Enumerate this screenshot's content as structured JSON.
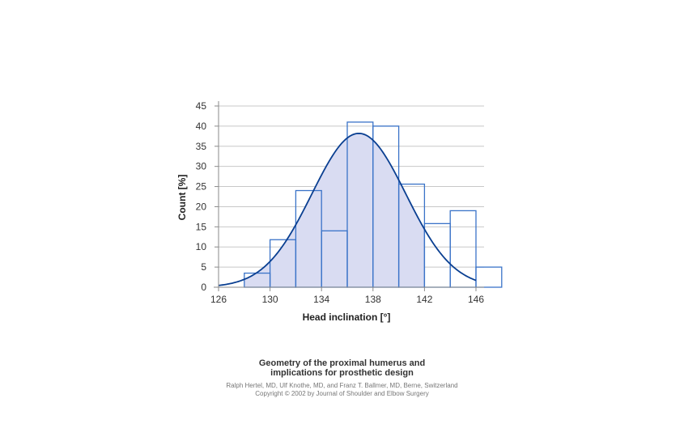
{
  "chart_data": {
    "type": "bar",
    "xlabel": "Head inclination [°]",
    "ylabel": "Count [%]",
    "xlim": [
      126,
      146
    ],
    "ylim": [
      0,
      45
    ],
    "xticks": [
      "126",
      "130",
      "134",
      "138",
      "142",
      "146"
    ],
    "yticks": [
      "0",
      "5",
      "10",
      "15",
      "20",
      "25",
      "30",
      "35",
      "40",
      "45"
    ],
    "grid": true,
    "bins": [
      {
        "start": 128,
        "end": 130,
        "value": 3.5
      },
      {
        "start": 130,
        "end": 132,
        "value": 11.8
      },
      {
        "start": 132,
        "end": 134,
        "value": 24
      },
      {
        "start": 134,
        "end": 136,
        "value": 14
      },
      {
        "start": 136,
        "end": 138,
        "value": 41
      },
      {
        "start": 138,
        "end": 140,
        "value": 40
      },
      {
        "start": 140,
        "end": 142,
        "value": 25.6
      },
      {
        "start": 142,
        "end": 144,
        "value": 15.8
      },
      {
        "start": 144,
        "end": 146,
        "value": 19
      },
      {
        "start": 146,
        "end": 148,
        "value": 5
      }
    ],
    "curve": {
      "type": "normal",
      "mean": 136.9,
      "peak": 38.2,
      "sd": 3.65
    },
    "colors": {
      "bar_stroke": "#3a73c8",
      "fill": "#d9dcf2",
      "curve": "#0a3f91",
      "grid": "#c8c8c8",
      "axis": "#8a8a8a"
    }
  },
  "caption": {
    "title_lines": [
      "Geometry of the proximal humerus and",
      "implications for prosthetic design"
    ],
    "credit_lines": [
      "Ralph Hertel, MD, Ulf Knothe, MD, and Franz T. Ballmer, MD, Berne, Switzerland",
      "Copyright © 2002 by Journal of Shoulder and Elbow Surgery"
    ]
  }
}
